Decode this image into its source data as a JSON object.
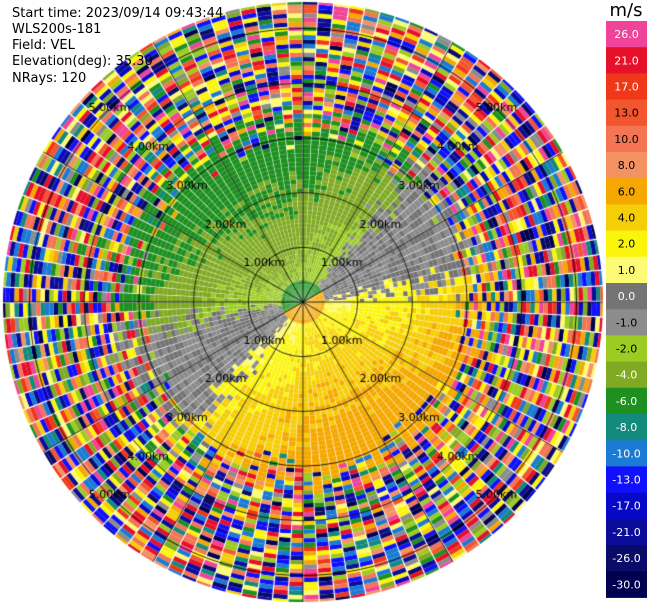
{
  "header": {
    "start_time": "Start time: 2023/09/14 09:43:44",
    "instrument": "WLS200s-181",
    "field": "Field: VEL",
    "elevation": "Elevation(deg): 35.30",
    "nrays": "NRays: 120"
  },
  "colorbar": {
    "unit": "m/s",
    "levels": [
      "26.0",
      "21.0",
      "17.0",
      "13.0",
      "10.0",
      "8.0",
      "6.0",
      "4.0",
      "2.0",
      "1.0",
      "0.0",
      "-1.0",
      "-2.0",
      "-4.0",
      "-6.0",
      "-8.0",
      "-10.0",
      "-13.0",
      "-17.0",
      "-21.0",
      "-26.0",
      "-30.0"
    ],
    "colors": [
      "#f0449a",
      "#e6102a",
      "#f03818",
      "#f2562e",
      "#f47454",
      "#f59262",
      "#f5a800",
      "#f6ce08",
      "#fbf50c",
      "#fdfa74",
      "#747474",
      "#8c8c8c",
      "#9ccc24",
      "#80aa24",
      "#1e9020",
      "#128a7c",
      "#1a7ad4",
      "#1010ff",
      "#0808c8",
      "#0c0c9a",
      "#0a0a68",
      "#000050"
    ]
  },
  "chart_data": {
    "type": "ppi",
    "field": "VEL",
    "units": "m/s",
    "nrays": 120,
    "elevation_deg": 35.3,
    "range_rings_km": [
      1,
      2,
      3,
      4,
      5
    ],
    "ring_labels": [
      "1.00km",
      "2.00km",
      "3.00km",
      "4.00km",
      "5.00km"
    ],
    "color_levels": [
      26.0,
      21.0,
      17.0,
      13.0,
      10.0,
      8.0,
      6.0,
      4.0,
      2.0,
      1.0,
      0.0,
      -1.0,
      -2.0,
      -4.0,
      -6.0,
      -8.0,
      -10.0,
      -13.0,
      -17.0,
      -21.0,
      -26.0,
      -30.0
    ]
  }
}
